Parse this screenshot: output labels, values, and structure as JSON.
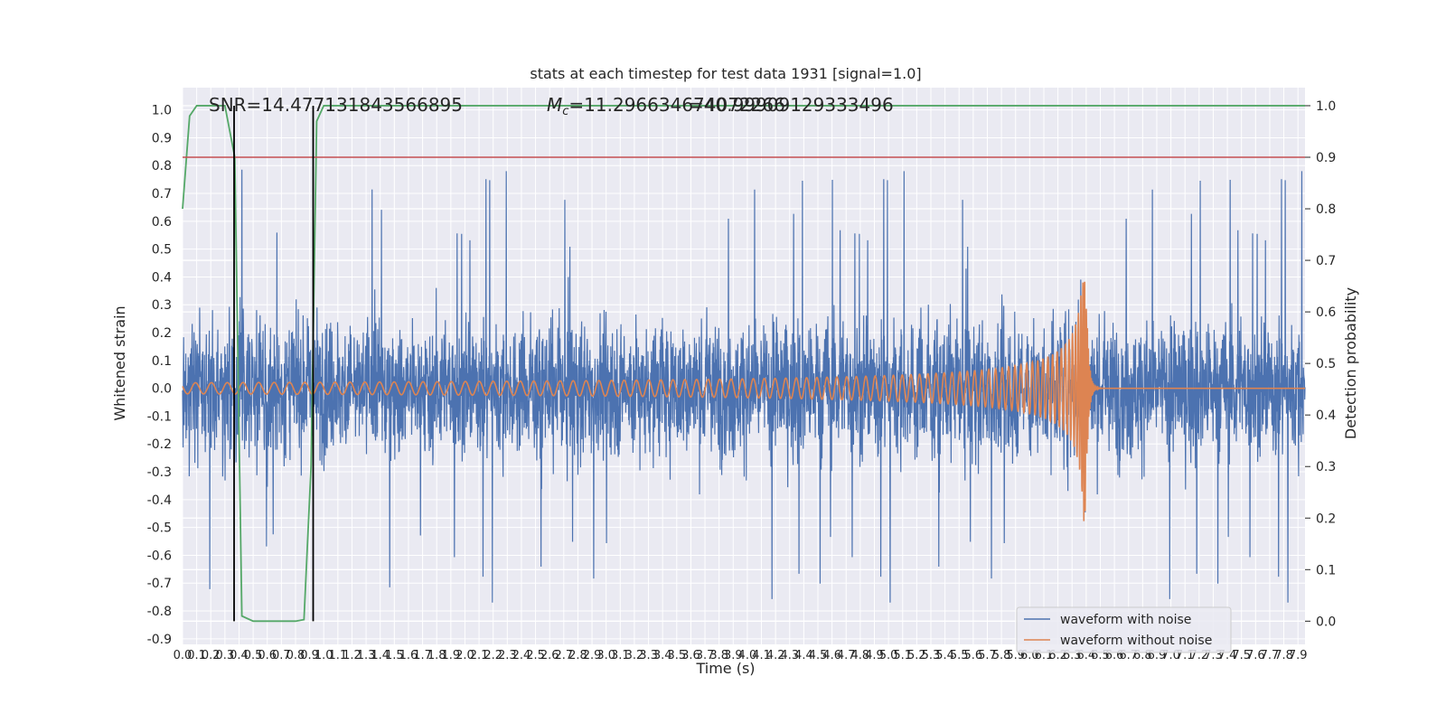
{
  "chart_data": {
    "type": "line",
    "title": "stats at each timestep for test data 1931 [signal=1.0]",
    "xlabel": "Time (s)",
    "ylabel_left": "Whitened strain",
    "ylabel_right": "Detection probability",
    "xlim": [
      0.0,
      7.95
    ],
    "ylim_left": [
      -0.92,
      1.08
    ],
    "ylim_right": [
      -0.045,
      1.035
    ],
    "grid": true,
    "legend_position": "lower-right",
    "annotations": {
      "snr": "SNR=14.477131843566895",
      "mc_prefix": "M",
      "mc_sub": "c",
      "mc_value": "=11.296634674072266",
      "overlap": "=40.99909129333496"
    },
    "x_ticks": [
      "0.0",
      "0.1",
      "0.2",
      "0.3",
      "0.4",
      "0.5",
      "0.6",
      "0.7",
      "0.8",
      "0.9",
      "1.0",
      "1.1",
      "1.2",
      "1.3",
      "1.4",
      "1.5",
      "1.6",
      "1.7",
      "1.8",
      "1.9",
      "2.0",
      "2.1",
      "2.2",
      "2.3",
      "2.4",
      "2.5",
      "2.6",
      "2.7",
      "2.8",
      "2.9",
      "3.0",
      "3.1",
      "3.2",
      "3.3",
      "3.4",
      "3.5",
      "3.6",
      "3.7",
      "3.8",
      "3.9",
      "4.0",
      "4.1",
      "4.2",
      "4.3",
      "4.4",
      "4.5",
      "4.6",
      "4.7",
      "4.8",
      "4.9",
      "5.0",
      "5.1",
      "5.2",
      "5.3",
      "5.4",
      "5.5",
      "5.6",
      "5.7",
      "5.8",
      "5.9",
      "6.0",
      "6.1",
      "6.2",
      "6.3",
      "6.4",
      "6.5",
      "6.6",
      "6.7",
      "6.8",
      "6.9",
      "7.0",
      "7.1",
      "7.2",
      "7.3",
      "7.4",
      "7.5",
      "7.6",
      "7.7",
      "7.8",
      "7.9"
    ],
    "y_ticks_left": [
      "-0.9",
      "-0.8",
      "-0.7",
      "-0.6",
      "-0.5",
      "-0.4",
      "-0.3",
      "-0.2",
      "-0.1",
      "0.0",
      "0.1",
      "0.2",
      "0.3",
      "0.4",
      "0.5",
      "0.6",
      "0.7",
      "0.8",
      "0.9",
      "1.0"
    ],
    "y_ticks_right": [
      "0.0",
      "0.1",
      "0.2",
      "0.3",
      "0.4",
      "0.5",
      "0.6",
      "0.7",
      "0.8",
      "0.9",
      "1.0"
    ],
    "series": [
      {
        "name": "waveform with noise",
        "axis": "left",
        "color": "#4c72b0",
        "kind": "noise",
        "typical_range": [
          -0.5,
          0.5
        ],
        "extreme_range": [
          -0.82,
          0.99
        ]
      },
      {
        "name": "waveform without noise",
        "axis": "left",
        "color": "#dd8452",
        "kind": "chirp",
        "merger_time": 6.4,
        "amplitude_start": 0.02,
        "amplitude_peak": 0.38,
        "amplitude_trough": -0.55
      },
      {
        "axis": "right",
        "color": "#55a868",
        "x": [
          0.0,
          0.05,
          0.1,
          0.2,
          0.3,
          0.37,
          0.42,
          0.5,
          0.6,
          0.7,
          0.8,
          0.86,
          0.91,
          0.95,
          1.0,
          7.95
        ],
        "y": [
          0.8,
          0.98,
          1.0,
          1.0,
          1.0,
          0.9,
          0.01,
          0.0,
          0.0,
          0.0,
          0.0,
          0.003,
          0.3,
          0.97,
          1.0,
          1.0
        ]
      },
      {
        "axis": "right",
        "color": "#c44e52",
        "kind": "threshold",
        "y": 0.9
      }
    ],
    "vertical_lines": [
      0.365,
      0.925
    ],
    "vertical_line_color": "#000000",
    "background": "#eaeaf2",
    "grid_color": "#ffffff"
  }
}
